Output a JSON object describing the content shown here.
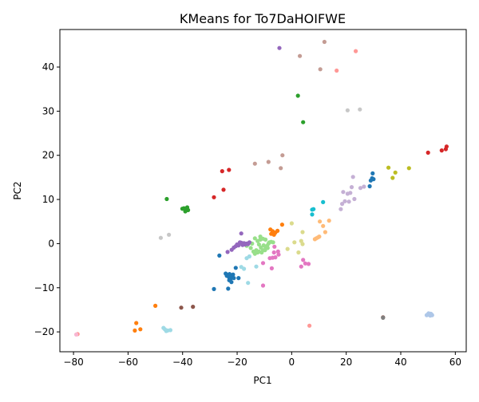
{
  "chart_data": {
    "type": "scatter",
    "title": "KMeans for To7DaHOIFWE",
    "xlabel": "PC1",
    "ylabel": "PC2",
    "xlim": [
      -85,
      64
    ],
    "ylim": [
      -24.5,
      48.5
    ],
    "xticks": [
      -80,
      -60,
      -40,
      -20,
      0,
      20,
      40,
      60
    ],
    "yticks": [
      -20,
      -10,
      0,
      10,
      20,
      30,
      40
    ],
    "xtick_labels": [
      "−80",
      "−60",
      "−40",
      "−20",
      "0",
      "20",
      "40",
      "60"
    ],
    "ytick_labels": [
      "−20",
      "−10",
      "0",
      "10",
      "20",
      "30",
      "40"
    ],
    "grid": false,
    "legend": "none",
    "series": [
      {
        "color": "#1f77b4",
        "points": [
          [
            -23.5,
            -7.1
          ],
          [
            -22.8,
            -6.9
          ],
          [
            -22.0,
            -7.3
          ],
          [
            -21.5,
            -7.0
          ],
          [
            -23.0,
            -7.6
          ],
          [
            -22.3,
            -7.9
          ],
          [
            -21.8,
            -7.5
          ],
          [
            -23.8,
            -7.3
          ],
          [
            -22.6,
            -7.2
          ],
          [
            -21.2,
            -7.8
          ],
          [
            -22.9,
            -8.3
          ],
          [
            -22.1,
            -8.7
          ],
          [
            -24.2,
            -6.8
          ],
          [
            -20.5,
            -5.5
          ],
          [
            -19.5,
            -7.8
          ],
          [
            -26.5,
            -2.7
          ],
          [
            -23.3,
            -10.2
          ],
          [
            -28.5,
            -10.3
          ],
          [
            29.0,
            14.3
          ],
          [
            29.5,
            14.8
          ],
          [
            30.0,
            14.6
          ],
          [
            29.7,
            15.9
          ],
          [
            28.6,
            13.0
          ]
        ]
      },
      {
        "color": "#aec7e8",
        "points": [
          [
            49.8,
            -16.1
          ],
          [
            50.4,
            -16.0
          ],
          [
            51.0,
            -15.9
          ],
          [
            51.5,
            -16.2
          ],
          [
            50.8,
            -16.3
          ],
          [
            50.2,
            -15.8
          ],
          [
            51.2,
            -16.0
          ],
          [
            49.5,
            -16.2
          ]
        ]
      },
      {
        "color": "#ff7f0e",
        "points": [
          [
            -7.0,
            2.8
          ],
          [
            -6.0,
            2.5
          ],
          [
            -5.2,
            2.9
          ],
          [
            -7.5,
            2.2
          ],
          [
            -6.5,
            2.0
          ],
          [
            -3.5,
            4.3
          ],
          [
            -7.8,
            3.2
          ],
          [
            -57.0,
            -18.0
          ],
          [
            -57.5,
            -19.7
          ],
          [
            -55.5,
            -19.4
          ],
          [
            -50.0,
            -14.1
          ]
        ]
      },
      {
        "color": "#ffbb78",
        "points": [
          [
            9.0,
            1.2
          ],
          [
            9.6,
            1.4
          ],
          [
            10.1,
            1.6
          ],
          [
            8.5,
            1.0
          ],
          [
            12.3,
            2.6
          ],
          [
            13.7,
            5.2
          ],
          [
            11.5,
            4.0
          ],
          [
            10.3,
            5.0
          ]
        ]
      },
      {
        "color": "#2ca02c",
        "points": [
          [
            -39.5,
            8.0
          ],
          [
            -38.6,
            7.8
          ],
          [
            -38.0,
            7.6
          ],
          [
            -39.0,
            7.3
          ],
          [
            -38.3,
            8.2
          ],
          [
            -40.1,
            7.9
          ],
          [
            -45.8,
            10.1
          ],
          [
            2.3,
            33.5
          ],
          [
            4.2,
            27.5
          ]
        ]
      },
      {
        "color": "#98df8a",
        "points": [
          [
            -13.0,
            -1.5
          ],
          [
            -12.0,
            -1.8
          ],
          [
            -11.0,
            -2.0
          ],
          [
            -10.5,
            -1.5
          ],
          [
            -9.5,
            -1.0
          ],
          [
            -9.0,
            -0.5
          ],
          [
            -8.5,
            0.0
          ],
          [
            -8.2,
            0.3
          ],
          [
            -12.5,
            0.6
          ],
          [
            -11.5,
            0.9
          ],
          [
            -10.5,
            1.1
          ],
          [
            -9.6,
            0.9
          ],
          [
            -10.3,
            -0.4
          ],
          [
            -11.3,
            -0.9
          ],
          [
            -12.0,
            -0.2
          ],
          [
            -13.5,
            -2.3
          ],
          [
            -14.5,
            0.0
          ],
          [
            -15.3,
            0.2
          ],
          [
            -16.5,
            -0.5
          ],
          [
            -15.0,
            -1.0
          ],
          [
            -14.0,
            -1.8
          ],
          [
            -13.5,
            1.2
          ],
          [
            -11.5,
            1.6
          ],
          [
            -7.5,
            0.4
          ],
          [
            -6.8,
            0.3
          ],
          [
            -8.8,
            -1.0
          ],
          [
            -9.8,
            -1.5
          ],
          [
            -12.5,
            -2.0
          ]
        ]
      },
      {
        "color": "#d62728",
        "points": [
          [
            -25.5,
            16.4
          ],
          [
            -23.0,
            16.7
          ],
          [
            -25.0,
            12.2
          ],
          [
            -28.5,
            10.5
          ],
          [
            50.0,
            20.6
          ],
          [
            55.0,
            21.1
          ],
          [
            56.5,
            21.4
          ],
          [
            56.8,
            22.0
          ]
        ]
      },
      {
        "color": "#ff9896",
        "points": [
          [
            23.5,
            43.6
          ],
          [
            16.5,
            39.2
          ],
          [
            6.5,
            -18.6
          ],
          [
            -78.5,
            -20.5
          ]
        ]
      },
      {
        "color": "#9467bd",
        "points": [
          [
            -18.5,
            0.2
          ],
          [
            -17.5,
            0.1
          ],
          [
            -16.5,
            0.0
          ],
          [
            -19.5,
            -0.4
          ],
          [
            -20.5,
            -0.6
          ],
          [
            -21.2,
            -0.9
          ],
          [
            -18.0,
            -0.3
          ],
          [
            -17.0,
            -0.2
          ],
          [
            -16.0,
            -0.1
          ],
          [
            -19.0,
            0.3
          ],
          [
            -20.0,
            -0.2
          ],
          [
            -22.0,
            -1.4
          ],
          [
            -23.5,
            -1.9
          ],
          [
            -18.5,
            2.3
          ],
          [
            -15.5,
            0.3
          ],
          [
            -4.5,
            44.3
          ]
        ]
      },
      {
        "color": "#c5b0d5",
        "points": [
          [
            20.5,
            11.3
          ],
          [
            21.5,
            11.5
          ],
          [
            22.5,
            15.1
          ],
          [
            22.0,
            12.8
          ],
          [
            23.0,
            10.1
          ],
          [
            21.0,
            9.5
          ],
          [
            19.5,
            9.6
          ],
          [
            18.0,
            7.8
          ],
          [
            18.5,
            9.0
          ],
          [
            18.9,
            11.7
          ],
          [
            25.2,
            12.6
          ],
          [
            26.5,
            12.9
          ]
        ]
      },
      {
        "color": "#8c564b",
        "points": [
          [
            -40.5,
            -14.5
          ],
          [
            -36.2,
            -14.3
          ],
          [
            33.5,
            -16.7
          ]
        ]
      },
      {
        "color": "#c49c94",
        "points": [
          [
            -3.4,
            20.0
          ],
          [
            -4.0,
            17.1
          ],
          [
            -8.5,
            18.5
          ],
          [
            -13.5,
            18.1
          ],
          [
            3.0,
            42.5
          ],
          [
            10.5,
            39.5
          ],
          [
            12.0,
            45.7
          ]
        ]
      },
      {
        "color": "#e377c2",
        "points": [
          [
            -6.0,
            -3.1
          ],
          [
            -7.0,
            -3.2
          ],
          [
            -8.0,
            -3.3
          ],
          [
            -6.5,
            -2.0
          ],
          [
            -5.0,
            -1.8
          ],
          [
            -4.8,
            -2.5
          ],
          [
            -6.3,
            -0.7
          ],
          [
            -7.3,
            -5.6
          ],
          [
            -10.5,
            -4.4
          ],
          [
            -10.5,
            -9.5
          ],
          [
            4.2,
            -3.7
          ],
          [
            5.0,
            -4.5
          ],
          [
            6.2,
            -4.6
          ],
          [
            3.5,
            -5.2
          ]
        ]
      },
      {
        "color": "#f7b6d2",
        "points": [
          [
            -79.0,
            -20.6
          ]
        ]
      },
      {
        "color": "#7f7f7f",
        "points": [
          [
            33.5,
            -16.8
          ]
        ]
      },
      {
        "color": "#c7c7c7",
        "points": [
          [
            -48.0,
            1.3
          ],
          [
            -45.0,
            2.0
          ],
          [
            20.5,
            30.2
          ],
          [
            25.0,
            30.4
          ]
        ]
      },
      {
        "color": "#bcbd22",
        "points": [
          [
            37.0,
            14.9
          ],
          [
            35.5,
            17.2
          ],
          [
            38.0,
            16.1
          ],
          [
            43.0,
            17.1
          ]
        ]
      },
      {
        "color": "#dbdb8d",
        "points": [
          [
            -1.5,
            -1.2
          ],
          [
            0.0,
            4.6
          ],
          [
            1.0,
            0.3
          ],
          [
            3.5,
            0.6
          ],
          [
            4.0,
            2.6
          ],
          [
            2.5,
            -2.0
          ],
          [
            4.0,
            -0.1
          ]
        ]
      },
      {
        "color": "#17becf",
        "points": [
          [
            7.5,
            7.7
          ],
          [
            8.0,
            7.8
          ],
          [
            7.5,
            6.6
          ],
          [
            11.5,
            9.4
          ]
        ]
      },
      {
        "color": "#9edae5",
        "points": [
          [
            -15.5,
            -2.9
          ],
          [
            -16.5,
            -3.3
          ],
          [
            -17.5,
            -5.7
          ],
          [
            -18.5,
            -5.3
          ],
          [
            -16.0,
            -8.9
          ],
          [
            -13.0,
            -5.2
          ],
          [
            -46.5,
            -19.4
          ],
          [
            -46.0,
            -19.8
          ],
          [
            -45.5,
            -19.7
          ],
          [
            -44.5,
            -19.6
          ],
          [
            -47.0,
            -19.1
          ]
        ]
      }
    ]
  }
}
